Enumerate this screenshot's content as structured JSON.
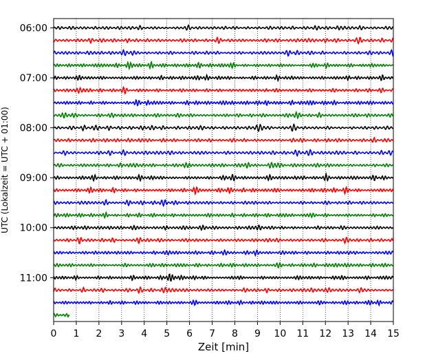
{
  "chart_data": {
    "type": "line",
    "title": "",
    "xlabel": "Zeit  [min]",
    "ylabel": "UTC (Lokalzeit = UTC + 01:00)",
    "xlim": [
      0,
      15
    ],
    "x_ticks": [
      "0",
      "1",
      "2",
      "3",
      "4",
      "5",
      "6",
      "7",
      "8",
      "9",
      "10",
      "11",
      "12",
      "13",
      "14",
      "15"
    ],
    "y_tick_labels": [
      "06:00",
      "07:00",
      "08:00",
      "09:00",
      "10:00",
      "11:00"
    ],
    "trace_interval_min": 15,
    "trace_colors": [
      "#000000",
      "#ff0000",
      "#0000ff",
      "#008000"
    ],
    "traces": [
      {
        "start": "06:00",
        "end_min": 15
      },
      {
        "start": "06:15",
        "end_min": 15
      },
      {
        "start": "06:30",
        "end_min": 15
      },
      {
        "start": "06:45",
        "end_min": 15
      },
      {
        "start": "07:00",
        "end_min": 15
      },
      {
        "start": "07:15",
        "end_min": 15
      },
      {
        "start": "07:30",
        "end_min": 15
      },
      {
        "start": "07:45",
        "end_min": 15
      },
      {
        "start": "08:00",
        "end_min": 15
      },
      {
        "start": "08:15",
        "end_min": 15
      },
      {
        "start": "08:30",
        "end_min": 15
      },
      {
        "start": "08:45",
        "end_min": 15
      },
      {
        "start": "09:00",
        "end_min": 15
      },
      {
        "start": "09:15",
        "end_min": 15
      },
      {
        "start": "09:30",
        "end_min": 15
      },
      {
        "start": "09:45",
        "end_min": 15
      },
      {
        "start": "10:00",
        "end_min": 15
      },
      {
        "start": "10:15",
        "end_min": 15
      },
      {
        "start": "10:30",
        "end_min": 15
      },
      {
        "start": "10:45",
        "end_min": 15
      },
      {
        "start": "11:00",
        "end_min": 15
      },
      {
        "start": "11:15",
        "end_min": 15
      },
      {
        "start": "11:30",
        "end_min": 15
      },
      {
        "start": "11:45",
        "end_min": 0.7
      }
    ],
    "vertical_grid": "dotted",
    "legend": "none"
  }
}
